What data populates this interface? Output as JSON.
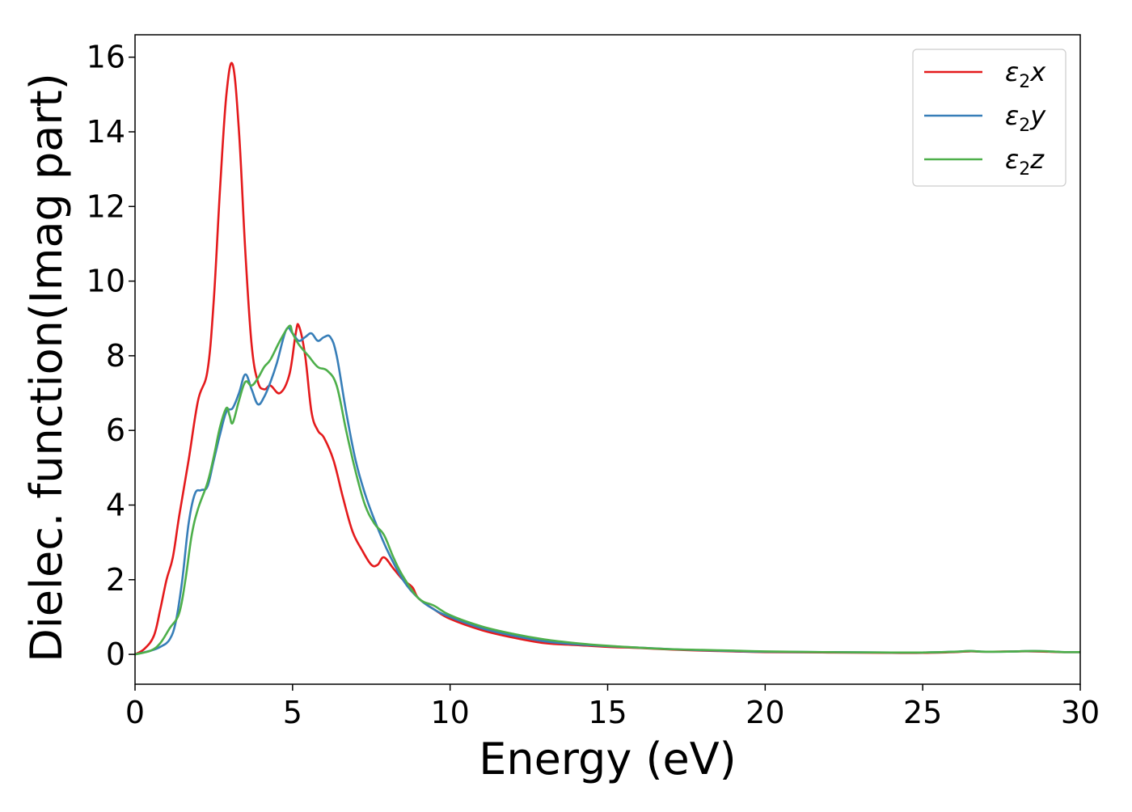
{
  "chart_data": {
    "type": "line",
    "title": "",
    "xlabel": "Energy (eV)",
    "ylabel": "Dielec. function(Imag part)",
    "xlim": [
      0,
      30
    ],
    "ylim": [
      -0.8,
      16.6
    ],
    "xticks": [
      0,
      5,
      10,
      15,
      20,
      25,
      30
    ],
    "yticks": [
      0,
      2,
      4,
      6,
      8,
      10,
      12,
      14,
      16
    ],
    "xtick_labels": [
      "0",
      "5",
      "10",
      "15",
      "20",
      "25",
      "30"
    ],
    "ytick_labels": [
      "0",
      "2",
      "4",
      "6",
      "8",
      "10",
      "12",
      "14",
      "16"
    ],
    "grid": false,
    "legend_position": "top-right",
    "series": [
      {
        "name": "ε2x",
        "legend_symbol": "ε",
        "legend_sub": "2",
        "legend_var": "x",
        "color": "#e41a1c",
        "x": [
          0,
          0.3,
          0.6,
          0.8,
          1.0,
          1.2,
          1.4,
          1.7,
          2.0,
          2.3,
          2.5,
          2.7,
          2.9,
          3.1,
          3.3,
          3.5,
          3.7,
          3.9,
          4.1,
          4.3,
          4.6,
          4.9,
          5.1,
          5.2,
          5.4,
          5.6,
          5.8,
          6.0,
          6.3,
          6.6,
          6.9,
          7.2,
          7.5,
          7.7,
          7.9,
          8.2,
          8.5,
          8.8,
          9.0,
          9.5,
          10.0,
          11.0,
          12.0,
          13.0,
          14.0,
          15.0,
          16.0,
          17.0,
          18.0,
          19.0,
          20.0,
          22.0,
          24.0,
          25.0,
          26.0,
          26.5,
          27.0,
          28.0,
          28.5,
          29.0,
          29.5,
          30.0
        ],
        "y": [
          0.0,
          0.15,
          0.5,
          1.2,
          2.0,
          2.6,
          3.7,
          5.2,
          6.8,
          7.6,
          9.5,
          12.5,
          15.0,
          15.8,
          14.0,
          10.8,
          8.3,
          7.3,
          7.1,
          7.2,
          7.0,
          7.5,
          8.6,
          8.8,
          8.0,
          6.5,
          6.0,
          5.8,
          5.2,
          4.2,
          3.3,
          2.8,
          2.4,
          2.4,
          2.6,
          2.3,
          2.0,
          1.8,
          1.5,
          1.2,
          0.95,
          0.65,
          0.45,
          0.3,
          0.25,
          0.2,
          0.17,
          0.13,
          0.1,
          0.08,
          0.06,
          0.05,
          0.04,
          0.04,
          0.06,
          0.08,
          0.07,
          0.08,
          0.08,
          0.07,
          0.06,
          0.06
        ]
      },
      {
        "name": "ε2y",
        "legend_symbol": "ε",
        "legend_sub": "2",
        "legend_var": "y",
        "color": "#377eb8",
        "x": [
          0,
          0.5,
          0.8,
          1.1,
          1.3,
          1.5,
          1.7,
          1.9,
          2.1,
          2.3,
          2.5,
          2.7,
          2.9,
          3.1,
          3.3,
          3.5,
          3.7,
          3.9,
          4.1,
          4.3,
          4.5,
          4.8,
          5.0,
          5.2,
          5.4,
          5.6,
          5.8,
          6.0,
          6.2,
          6.4,
          6.7,
          7.0,
          7.3,
          7.6,
          8.0,
          8.5,
          9.0,
          9.5,
          10.0,
          11.0,
          12.0,
          13.0,
          14.0,
          15.0,
          16.0,
          17.0,
          18.0,
          19.0,
          20.0,
          22.0,
          24.0,
          25.0,
          26.0,
          26.5,
          27.0,
          28.0,
          28.5,
          29.0,
          29.5,
          30.0
        ],
        "y": [
          0.0,
          0.1,
          0.2,
          0.4,
          0.9,
          2.0,
          3.5,
          4.3,
          4.4,
          4.5,
          5.2,
          5.9,
          6.5,
          6.6,
          7.0,
          7.5,
          7.1,
          6.7,
          6.9,
          7.3,
          7.8,
          8.7,
          8.6,
          8.4,
          8.5,
          8.6,
          8.4,
          8.5,
          8.5,
          8.0,
          6.5,
          5.2,
          4.3,
          3.6,
          2.8,
          2.0,
          1.5,
          1.2,
          1.0,
          0.7,
          0.5,
          0.35,
          0.27,
          0.22,
          0.18,
          0.14,
          0.11,
          0.09,
          0.07,
          0.06,
          0.05,
          0.05,
          0.07,
          0.09,
          0.07,
          0.08,
          0.09,
          0.08,
          0.06,
          0.06
        ]
      },
      {
        "name": "ε2z",
        "legend_symbol": "ε",
        "legend_sub": "2",
        "legend_var": "z",
        "color": "#4daf4a",
        "x": [
          0,
          0.5,
          0.8,
          1.1,
          1.4,
          1.6,
          1.8,
          2.0,
          2.3,
          2.5,
          2.7,
          2.9,
          3.0,
          3.1,
          3.3,
          3.5,
          3.7,
          3.9,
          4.1,
          4.3,
          4.6,
          4.9,
          5.0,
          5.2,
          5.5,
          5.8,
          6.1,
          6.4,
          6.7,
          7.0,
          7.3,
          7.6,
          7.9,
          8.2,
          8.5,
          9.0,
          9.5,
          10.0,
          11.0,
          12.0,
          13.0,
          14.0,
          15.0,
          16.0,
          17.0,
          18.0,
          19.0,
          20.0,
          22.0,
          24.0,
          25.0,
          26.0,
          26.5,
          27.0,
          28.0,
          28.5,
          29.0,
          29.5,
          30.0
        ],
        "y": [
          0.0,
          0.1,
          0.3,
          0.7,
          1.1,
          2.0,
          3.2,
          3.9,
          4.6,
          5.3,
          6.1,
          6.6,
          6.4,
          6.2,
          6.8,
          7.3,
          7.2,
          7.4,
          7.7,
          7.9,
          8.4,
          8.8,
          8.6,
          8.3,
          8.0,
          7.7,
          7.6,
          7.2,
          6.0,
          4.9,
          4.0,
          3.5,
          3.2,
          2.6,
          2.1,
          1.5,
          1.3,
          1.05,
          0.75,
          0.55,
          0.4,
          0.3,
          0.23,
          0.18,
          0.14,
          0.12,
          0.1,
          0.08,
          0.06,
          0.05,
          0.05,
          0.07,
          0.09,
          0.07,
          0.08,
          0.09,
          0.08,
          0.06,
          0.06
        ]
      }
    ]
  }
}
